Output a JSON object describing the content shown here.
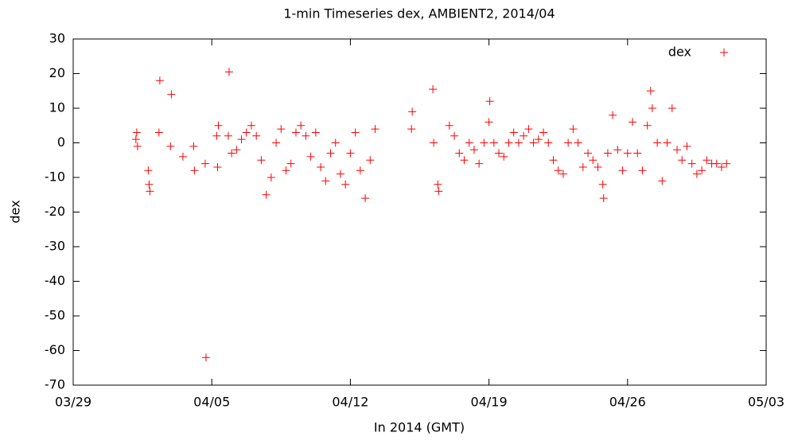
{
  "chart_data": {
    "type": "scatter",
    "title": "1-min Timeseries dex, AMBIENT2, 2014/04",
    "xlabel": "In 2014 (GMT)",
    "ylabel": "dex",
    "xlim": [
      "2014-03-29T00:00",
      "2014-05-03T00:00"
    ],
    "xticks": [
      {
        "value": "2014-03-29T00:00",
        "label": "03/29"
      },
      {
        "value": "2014-04-05T00:00",
        "label": "04/05"
      },
      {
        "value": "2014-04-12T00:00",
        "label": "04/12"
      },
      {
        "value": "2014-04-19T00:00",
        "label": "04/19"
      },
      {
        "value": "2014-04-26T00:00",
        "label": "04/26"
      },
      {
        "value": "2014-05-03T00:00",
        "label": "05/03"
      }
    ],
    "ylim": [
      -70,
      30
    ],
    "yticks": [
      -70,
      -60,
      -50,
      -40,
      -30,
      -20,
      -10,
      0,
      10,
      20,
      30
    ],
    "legend": "top-right",
    "series": [
      {
        "name": "dex",
        "color": "#ff0000",
        "x": [
          "2014-04-01T04:00",
          "2014-04-01T05:00",
          "2014-04-01T06:00",
          "2014-04-01T19:00",
          "2014-04-01T20:00",
          "2014-04-01T21:00",
          "2014-04-02T08:00",
          "2014-04-02T09:00",
          "2014-04-02T22:00",
          "2014-04-02T23:00",
          "2014-04-03T13:00",
          "2014-04-04T02:00",
          "2014-04-04T03:00",
          "2014-04-04T16:00",
          "2014-04-04T17:00",
          "2014-04-05T06:00",
          "2014-04-05T07:00",
          "2014-04-05T08:00",
          "2014-04-05T20:00",
          "2014-04-05T21:00",
          "2014-04-06T00:00",
          "2014-04-06T06:00",
          "2014-04-06T12:00",
          "2014-04-06T18:00",
          "2014-04-07T00:00",
          "2014-04-07T06:00",
          "2014-04-07T12:00",
          "2014-04-07T18:00",
          "2014-04-08T00:00",
          "2014-04-08T06:00",
          "2014-04-08T12:00",
          "2014-04-08T18:00",
          "2014-04-09T00:00",
          "2014-04-09T06:00",
          "2014-04-09T12:00",
          "2014-04-09T18:00",
          "2014-04-10T00:00",
          "2014-04-10T06:00",
          "2014-04-10T12:00",
          "2014-04-10T18:00",
          "2014-04-11T00:00",
          "2014-04-11T06:00",
          "2014-04-11T12:00",
          "2014-04-11T18:00",
          "2014-04-12T00:00",
          "2014-04-12T06:00",
          "2014-04-12T12:00",
          "2014-04-12T18:00",
          "2014-04-13T00:00",
          "2014-04-13T06:00",
          "2014-04-15T02:00",
          "2014-04-15T03:00",
          "2014-04-16T04:00",
          "2014-04-16T05:00",
          "2014-04-16T10:00",
          "2014-04-16T11:00",
          "2014-04-17T00:00",
          "2014-04-17T06:00",
          "2014-04-17T12:00",
          "2014-04-17T18:00",
          "2014-04-18T00:00",
          "2014-04-18T06:00",
          "2014-04-18T12:00",
          "2014-04-18T18:00",
          "2014-04-19T00:00",
          "2014-04-19T06:00",
          "2014-04-19T12:00",
          "2014-04-19T18:00",
          "2014-04-20T00:00",
          "2014-04-20T06:00",
          "2014-04-20T12:00",
          "2014-04-20T18:00",
          "2014-04-21T00:00",
          "2014-04-21T06:00",
          "2014-04-21T12:00",
          "2014-04-21T18:00",
          "2014-04-22T00:00",
          "2014-04-22T06:00",
          "2014-04-22T12:00",
          "2014-04-22T18:00",
          "2014-04-23T00:00",
          "2014-04-23T06:00",
          "2014-04-23T12:00",
          "2014-04-23T18:00",
          "2014-04-24T00:00",
          "2014-04-24T06:00",
          "2014-04-24T12:00",
          "2014-04-24T18:00",
          "2014-04-25T00:00",
          "2014-04-25T06:00",
          "2014-04-25T12:00",
          "2014-04-25T18:00",
          "2014-04-26T00:00",
          "2014-04-26T06:00",
          "2014-04-26T12:00",
          "2014-04-26T18:00",
          "2014-04-27T00:00",
          "2014-04-27T06:00",
          "2014-04-27T12:00",
          "2014-04-27T18:00",
          "2014-04-28T00:00",
          "2014-04-28T06:00",
          "2014-04-28T12:00",
          "2014-04-28T18:00",
          "2014-04-29T00:00",
          "2014-04-29T06:00",
          "2014-04-29T12:00",
          "2014-04-29T18:00",
          "2014-04-30T00:00",
          "2014-04-30T06:00",
          "2014-04-30T12:00",
          "2014-04-30T18:00",
          "2014-05-01T00:00",
          "2014-04-19T01:00",
          "2014-04-24T19:00",
          "2014-04-27T04:00"
        ],
        "values": [
          1,
          3,
          -1,
          -8,
          -12,
          -14,
          3,
          18,
          -1,
          14,
          -4,
          -1,
          -8,
          -6,
          -62,
          2,
          -7,
          5,
          2,
          20.5,
          -3,
          -2,
          1,
          3,
          5,
          2,
          -5,
          -15,
          -10,
          0,
          4,
          -8,
          -6,
          3,
          5,
          2,
          -4,
          3,
          -7,
          -11,
          -3,
          0,
          -9,
          -12,
          -3,
          3,
          -8,
          -16,
          -5,
          4,
          4,
          9,
          15.5,
          0,
          -12,
          -14,
          5,
          2,
          -3,
          -5,
          0,
          -2,
          -6,
          0,
          6,
          0,
          -3,
          -4,
          0,
          3,
          0,
          2,
          4,
          0,
          1,
          3,
          0,
          -5,
          -8,
          -9,
          0,
          4,
          0,
          -7,
          -3,
          -5,
          -7,
          -12,
          -3,
          8,
          -2,
          -8,
          -3,
          6,
          -3,
          -8,
          5,
          10,
          0,
          -11,
          0,
          10,
          -2,
          -5,
          -1,
          -6,
          -9,
          -8,
          -5,
          -6,
          -6,
          -7,
          -6,
          12,
          -16,
          15
        ]
      }
    ]
  }
}
